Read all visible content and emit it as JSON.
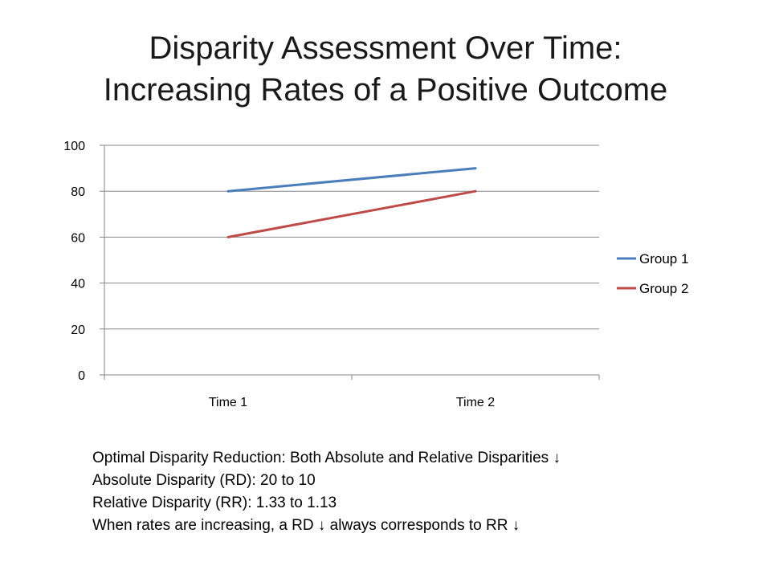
{
  "title": {
    "line1": "Disparity Assessment Over Time:",
    "line2": "Increasing Rates of a Positive Outcome"
  },
  "chart_data": {
    "type": "line",
    "categories": [
      "Time 1",
      "Time 2"
    ],
    "series": [
      {
        "name": "Group 1",
        "values": [
          80,
          90
        ],
        "color": "#4a7ebb"
      },
      {
        "name": "Group 2",
        "values": [
          60,
          80
        ],
        "color": "#be4b48"
      }
    ],
    "ylim": [
      0,
      100
    ],
    "yticks": [
      0,
      20,
      40,
      60,
      80,
      100
    ],
    "xlabel": "",
    "ylabel": "",
    "grid": true,
    "legend": "right"
  },
  "notes": [
    "Optimal Disparity Reduction: Both Absolute and Relative Disparities ↓",
    "Absolute Disparity (RD): 20 to 10",
    "Relative Disparity (RR): 1.33 to 1.13",
    "When rates are increasing, a RD ↓ always corresponds to RR ↓"
  ]
}
